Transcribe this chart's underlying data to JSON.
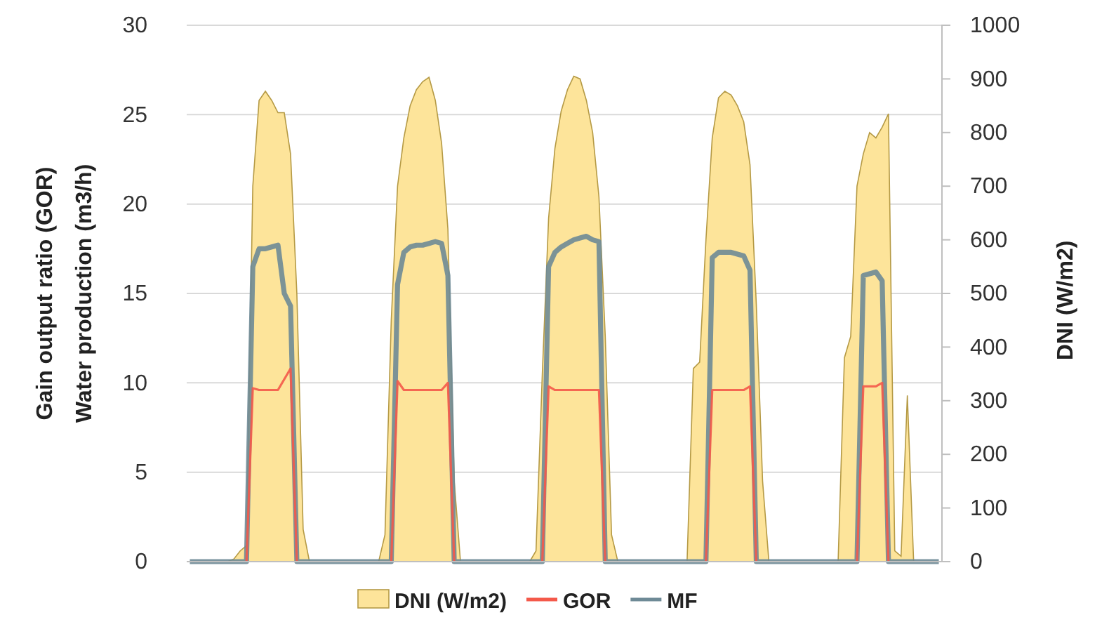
{
  "chart_data": {
    "type": "line",
    "ylabel": "Gain output ratio (GOR)\nWater production (m3/h)",
    "y2label": "DNI (W/m2)",
    "categories": [
      null,
      null,
      null,
      null,
      null,
      null,
      null,
      null,
      null,
      null,
      null,
      null,
      null,
      null,
      null,
      null,
      null,
      null,
      null,
      null,
      null,
      null,
      null,
      null,
      null,
      null,
      null,
      null,
      null,
      null,
      null,
      null,
      null,
      null,
      null,
      null,
      null,
      null,
      null,
      null,
      null,
      null,
      null,
      null,
      null,
      null,
      null,
      null,
      null,
      null,
      null,
      null,
      null,
      null,
      null,
      null,
      null,
      null,
      null,
      null,
      null,
      null,
      null,
      null,
      null,
      null,
      null,
      null,
      null,
      null,
      null,
      null,
      null,
      null,
      null,
      null,
      null,
      null,
      null,
      null,
      null,
      null,
      null,
      null,
      null,
      null,
      null,
      null,
      null,
      null,
      null,
      null,
      null,
      null,
      null,
      null,
      null,
      null,
      null,
      null,
      null,
      null,
      null,
      null,
      null,
      null,
      null,
      null,
      null,
      null,
      null,
      null,
      null,
      null,
      null,
      null,
      null,
      null,
      null,
      null
    ],
    "series": [
      {
        "name": "DNI (W/m2)",
        "type": "area",
        "axis": "y2",
        "color": "#fde49a",
        "values": [
          0,
          0,
          0,
          0,
          0,
          0,
          0,
          5,
          20,
          30,
          700,
          860,
          877,
          860,
          837,
          837,
          760,
          500,
          60,
          0,
          0,
          0,
          0,
          0,
          0,
          0,
          0,
          0,
          0,
          0,
          0,
          50,
          450,
          700,
          790,
          850,
          880,
          895,
          903,
          860,
          780,
          620,
          150,
          0,
          0,
          0,
          0,
          0,
          0,
          0,
          0,
          0,
          0,
          0,
          0,
          20,
          350,
          640,
          770,
          840,
          880,
          905,
          900,
          860,
          800,
          680,
          420,
          50,
          0,
          0,
          0,
          0,
          0,
          0,
          0,
          0,
          0,
          0,
          0,
          0,
          360,
          372,
          600,
          790,
          865,
          877,
          870,
          850,
          820,
          740,
          480,
          150,
          0,
          0,
          0,
          0,
          0,
          0,
          0,
          0,
          0,
          0,
          0,
          0,
          380,
          420,
          700,
          760,
          800,
          790,
          810,
          835,
          20,
          10,
          310,
          0,
          0,
          0,
          0,
          0
        ]
      },
      {
        "name": "GOR",
        "color": "#f4594a",
        "values": [
          null,
          null,
          null,
          null,
          null,
          null,
          null,
          null,
          null,
          0,
          9.7,
          9.6,
          9.6,
          9.6,
          9.6,
          10.2,
          10.8,
          0,
          null,
          null,
          null,
          null,
          null,
          null,
          null,
          null,
          null,
          null,
          null,
          null,
          null,
          null,
          0,
          10.1,
          9.6,
          9.6,
          9.6,
          9.6,
          9.6,
          9.6,
          9.6,
          10.0,
          0,
          null,
          null,
          null,
          null,
          null,
          null,
          null,
          null,
          null,
          null,
          null,
          null,
          null,
          0,
          9.8,
          9.6,
          9.6,
          9.6,
          9.6,
          9.6,
          9.6,
          9.6,
          9.6,
          0,
          null,
          null,
          null,
          null,
          null,
          null,
          null,
          null,
          null,
          null,
          null,
          null,
          null,
          null,
          null,
          0,
          9.6,
          9.6,
          9.6,
          9.6,
          9.6,
          9.6,
          9.8,
          0,
          null,
          null,
          null,
          null,
          null,
          null,
          null,
          null,
          null,
          null,
          null,
          null,
          null,
          null,
          null,
          0,
          9.8,
          9.8,
          9.8,
          10.0,
          0,
          null,
          null,
          null,
          null,
          null,
          null,
          null,
          null
        ]
      },
      {
        "name": "MF",
        "color": "#6e8a96",
        "values": [
          0,
          0,
          0,
          0,
          0,
          0,
          0,
          0,
          0,
          0,
          16.5,
          17.5,
          17.5,
          17.6,
          17.7,
          15.0,
          14.3,
          0,
          0,
          0,
          0,
          0,
          0,
          0,
          0,
          0,
          0,
          0,
          0,
          0,
          0,
          0,
          0,
          15.5,
          17.3,
          17.6,
          17.7,
          17.7,
          17.8,
          17.9,
          17.8,
          16.0,
          0,
          0,
          0,
          0,
          0,
          0,
          0,
          0,
          0,
          0,
          0,
          0,
          0,
          0,
          0,
          16.5,
          17.3,
          17.6,
          17.8,
          18.0,
          18.1,
          18.2,
          18.0,
          17.9,
          0,
          0,
          0,
          0,
          0,
          0,
          0,
          0,
          0,
          0,
          0,
          0,
          0,
          0,
          0,
          0,
          0,
          17.0,
          17.3,
          17.3,
          17.3,
          17.2,
          17.1,
          16.3,
          0,
          0,
          0,
          0,
          0,
          0,
          0,
          0,
          0,
          0,
          0,
          0,
          0,
          0,
          0,
          0,
          0,
          16.0,
          16.1,
          16.2,
          15.7,
          0,
          0,
          0,
          0,
          0,
          0,
          0,
          0,
          0
        ]
      }
    ],
    "ylim": [
      0,
      30
    ],
    "yticks": [
      0,
      5,
      10,
      15,
      20,
      25,
      30
    ],
    "y2lim": [
      0,
      1000
    ],
    "y2ticks": [
      0,
      100,
      200,
      300,
      400,
      500,
      600,
      700,
      800,
      900,
      1000
    ],
    "grid": "y",
    "legend": "bottom",
    "marker": "none",
    "line_style": "solid"
  }
}
